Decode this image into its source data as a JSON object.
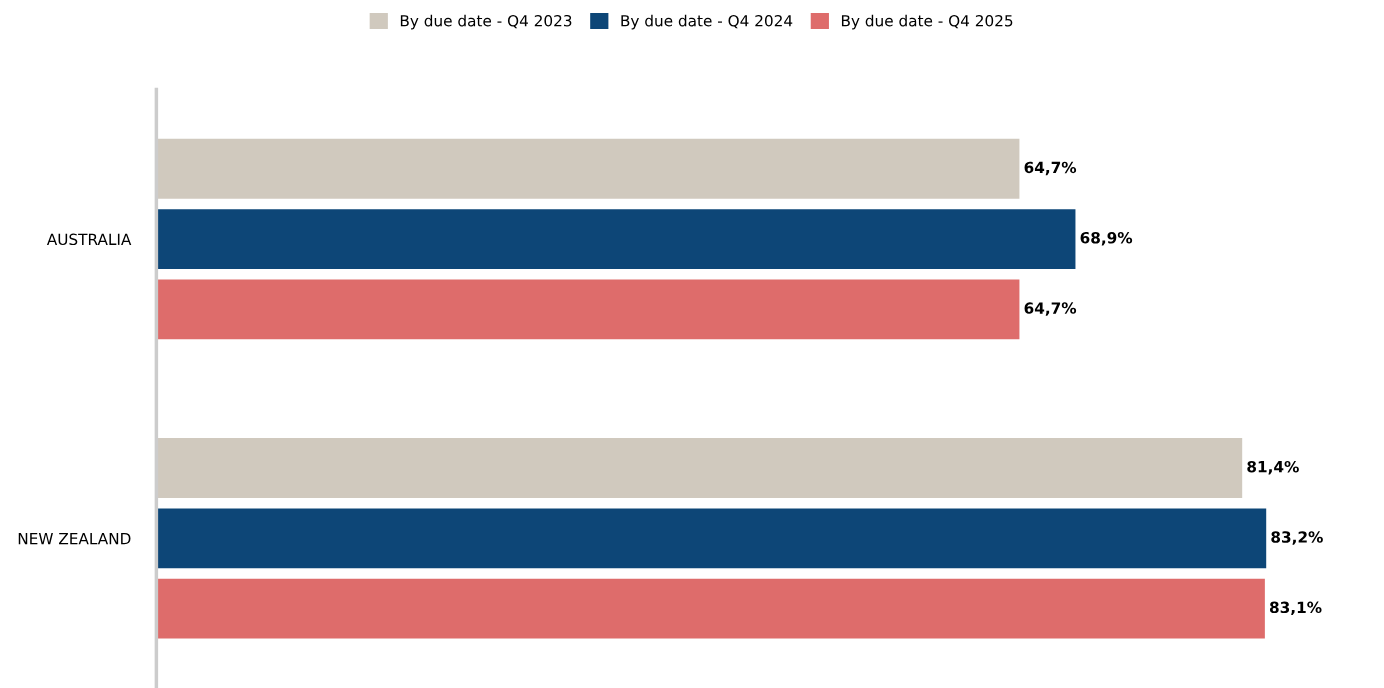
{
  "chart_data": {
    "type": "bar",
    "orientation": "horizontal",
    "categories": [
      "AUSTRALIA",
      "NEW ZEALAND"
    ],
    "series": [
      {
        "name": "By due date - Q4 2023",
        "color": "#d0c9be",
        "values": [
          64.7,
          81.4
        ],
        "value_labels": [
          "64,7%",
          "81,4%"
        ]
      },
      {
        "name": "By due date - Q4 2024",
        "color": "#0d4677",
        "values": [
          68.9,
          83.2
        ],
        "value_labels": [
          "68,9%",
          "83,2%"
        ]
      },
      {
        "name": "By due date - Q4 2025",
        "color": "#de6c6b",
        "values": [
          64.7,
          83.1
        ],
        "value_labels": [
          "64,7%",
          "83,1%"
        ]
      }
    ],
    "legend": "top",
    "grid": false,
    "tick_labels": "y"
  }
}
